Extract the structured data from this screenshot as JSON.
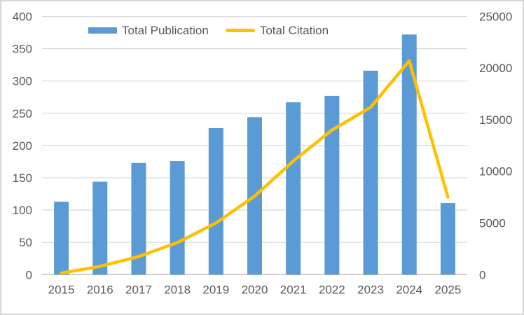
{
  "chart_data": {
    "type": "combo-bar-line",
    "title": "",
    "categories": [
      "2015",
      "2016",
      "2017",
      "2018",
      "2019",
      "2020",
      "2021",
      "2022",
      "2023",
      "2024",
      "2025"
    ],
    "series": [
      {
        "name": "Total Publication",
        "type": "bar",
        "axis": "left",
        "color": "#5B9BD5",
        "values": [
          113,
          144,
          173,
          176,
          227,
          244,
          267,
          277,
          316,
          372,
          111
        ]
      },
      {
        "name": "Total Citation",
        "type": "line",
        "axis": "right",
        "color": "#FFC000",
        "values": [
          150,
          800,
          1750,
          3100,
          5000,
          7600,
          11000,
          14000,
          16200,
          20700,
          7500
        ]
      }
    ],
    "left_axis": {
      "min": 0,
      "max": 400,
      "step": 50,
      "ticks": [
        0,
        50,
        100,
        150,
        200,
        250,
        300,
        350,
        400
      ]
    },
    "right_axis": {
      "min": 0,
      "max": 25000,
      "step": 5000,
      "ticks": [
        0,
        5000,
        10000,
        15000,
        20000,
        25000
      ]
    },
    "legend_position": "top",
    "grid": true,
    "colors": {
      "text": "#595959",
      "gridline": "#D9D9D9",
      "axis_line": "#BFBFBF",
      "frame_border": "#D6D6D6",
      "background": "#FFFFFF"
    }
  }
}
